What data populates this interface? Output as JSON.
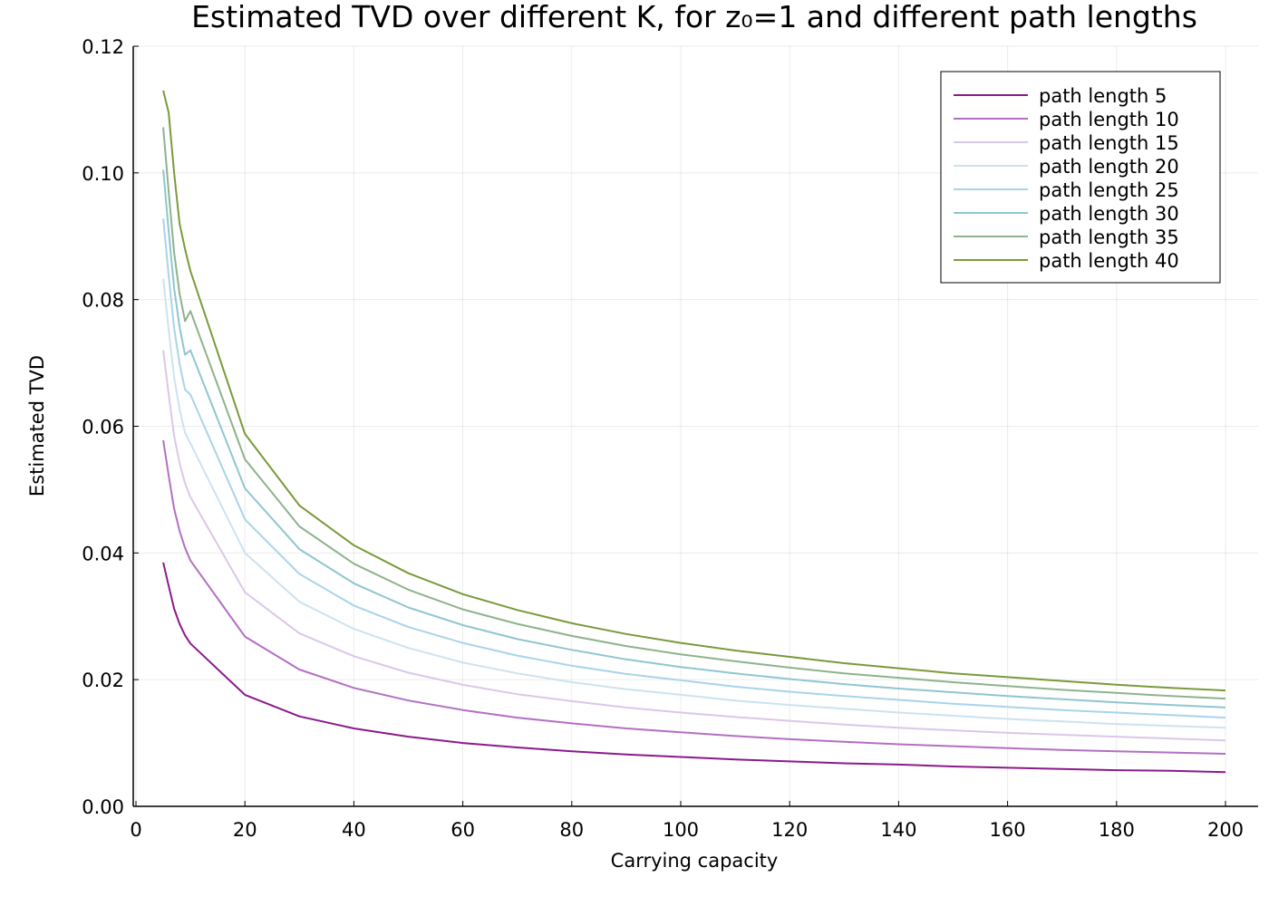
{
  "chart_data": {
    "type": "line",
    "title": "Estimated TVD over different K, for z₀=1 and different path lengths",
    "xlabel": "Carrying capacity",
    "ylabel": "Estimated TVD",
    "xlim": [
      0,
      206
    ],
    "ylim": [
      0,
      0.12
    ],
    "xticks": [
      0,
      20,
      40,
      60,
      80,
      100,
      120,
      140,
      160,
      180,
      200
    ],
    "xtick_labels": [
      "0",
      "20",
      "40",
      "60",
      "80",
      "100",
      "120",
      "140",
      "160",
      "180",
      "200"
    ],
    "yticks": [
      0,
      0.02,
      0.04,
      0.06,
      0.08,
      0.1,
      0.12
    ],
    "ytick_labels": [
      "0.00",
      "0.02",
      "0.04",
      "0.06",
      "0.08",
      "0.10",
      "0.12"
    ],
    "grid": true,
    "legend_position": "top-right",
    "x": [
      5,
      6,
      7,
      8,
      9,
      10,
      20,
      30,
      40,
      50,
      60,
      70,
      80,
      90,
      100,
      110,
      120,
      130,
      140,
      150,
      160,
      170,
      180,
      190,
      200
    ],
    "series": [
      {
        "name": "path length 5",
        "color": "#8b1a8b",
        "values": [
          0.0385,
          0.0348,
          0.0312,
          0.0288,
          0.027,
          0.0257,
          0.0176,
          0.0142,
          0.0123,
          0.011,
          0.01,
          0.0093,
          0.0087,
          0.0082,
          0.0078,
          0.0074,
          0.0071,
          0.0068,
          0.0066,
          0.0063,
          0.0061,
          0.0059,
          0.0057,
          0.0056,
          0.0054
        ]
      },
      {
        "name": "path length 10",
        "color": "#b36fc3",
        "values": [
          0.0578,
          0.0522,
          0.047,
          0.0435,
          0.0408,
          0.0388,
          0.0268,
          0.0216,
          0.0187,
          0.0167,
          0.0152,
          0.014,
          0.0131,
          0.0123,
          0.0117,
          0.0111,
          0.0106,
          0.0102,
          0.0098,
          0.0095,
          0.0092,
          0.0089,
          0.0087,
          0.0085,
          0.0083
        ]
      },
      {
        "name": "path length 15",
        "color": "#dac7e9",
        "values": [
          0.072,
          0.065,
          0.0585,
          0.0542,
          0.051,
          0.0488,
          0.0338,
          0.0273,
          0.0237,
          0.0211,
          0.0192,
          0.0177,
          0.0166,
          0.0156,
          0.0148,
          0.0141,
          0.0135,
          0.0129,
          0.0124,
          0.012,
          0.0116,
          0.0113,
          0.011,
          0.0107,
          0.0104
        ]
      },
      {
        "name": "path length 20",
        "color": "#cde2f0",
        "values": [
          0.0833,
          0.0752,
          0.0677,
          0.0627,
          0.059,
          0.0573,
          0.04,
          0.0323,
          0.028,
          0.025,
          0.0227,
          0.021,
          0.0196,
          0.0185,
          0.0176,
          0.0167,
          0.016,
          0.0154,
          0.0148,
          0.0143,
          0.0138,
          0.0134,
          0.013,
          0.0127,
          0.0124
        ]
      },
      {
        "name": "path length 25",
        "color": "#a8d4ea",
        "values": [
          0.0928,
          0.0838,
          0.0755,
          0.0699,
          0.0658,
          0.065,
          0.0453,
          0.0367,
          0.0317,
          0.0283,
          0.0258,
          0.0238,
          0.0222,
          0.0209,
          0.0199,
          0.0189,
          0.0181,
          0.0174,
          0.0168,
          0.0162,
          0.0157,
          0.0152,
          0.0148,
          0.0144,
          0.014
        ]
      },
      {
        "name": "path length 30",
        "color": "#8fc6d0",
        "values": [
          0.1005,
          0.0908,
          0.0818,
          0.0757,
          0.0713,
          0.072,
          0.0502,
          0.0406,
          0.0352,
          0.0314,
          0.0286,
          0.0264,
          0.0247,
          0.0232,
          0.022,
          0.021,
          0.0201,
          0.0193,
          0.0186,
          0.018,
          0.0174,
          0.0169,
          0.0164,
          0.016,
          0.0156
        ]
      },
      {
        "name": "path length 35",
        "color": "#8db38c",
        "values": [
          0.1072,
          0.097,
          0.0874,
          0.081,
          0.0766,
          0.0782,
          0.0548,
          0.0442,
          0.0383,
          0.0342,
          0.0311,
          0.0288,
          0.0269,
          0.0253,
          0.024,
          0.0229,
          0.0219,
          0.021,
          0.0203,
          0.0196,
          0.019,
          0.0184,
          0.0179,
          0.0174,
          0.017
        ]
      },
      {
        "name": "path length 40",
        "color": "#7a9a3a",
        "values": [
          0.113,
          0.1095,
          0.1,
          0.092,
          0.088,
          0.0845,
          0.0588,
          0.0475,
          0.0412,
          0.0368,
          0.0335,
          0.031,
          0.0289,
          0.0272,
          0.0258,
          0.0246,
          0.0236,
          0.0226,
          0.0218,
          0.021,
          0.0204,
          0.0198,
          0.0192,
          0.0187,
          0.0183
        ]
      }
    ]
  }
}
